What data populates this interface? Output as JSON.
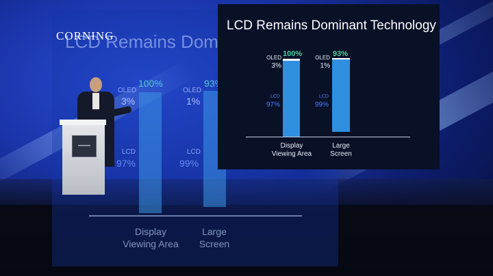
{
  "logo": {
    "text": "CORNING"
  },
  "slide": {
    "title": "LCD Remains Dominant Technology",
    "bars": [
      {
        "category_line1": "Display",
        "category_line2": "Viewing Area",
        "total": "100%",
        "oled_label": "OLED",
        "oled_pct": "3%",
        "lcd_label": "LCD",
        "lcd_pct": "97%"
      },
      {
        "category_line1": "Large",
        "category_line2": "Screen",
        "total": "93%",
        "oled_label": "OLED",
        "oled_pct": "1%",
        "lcd_label": "LCD",
        "lcd_pct": "99%"
      }
    ]
  },
  "colors": {
    "bar": "#2f8fe0",
    "top_pct": "#4fd0a0",
    "lcd_text": "#4b7dff",
    "slide_bg": "#091127",
    "stage_blue": "#1a34a8"
  }
}
